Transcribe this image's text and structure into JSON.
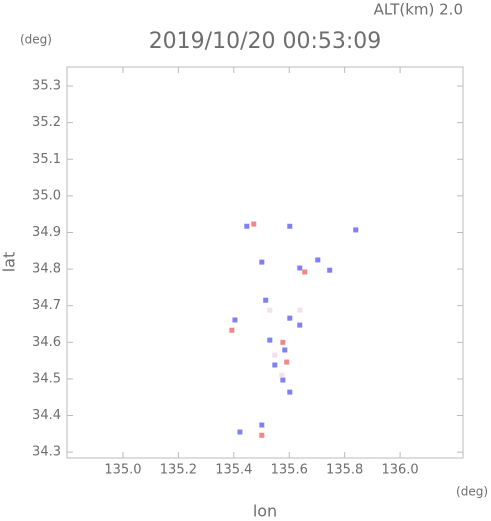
{
  "chart_data": {
    "type": "scatter",
    "title": "2019/10/20 00:53:09",
    "subtitle": "ALT(km) 2.0",
    "x_label": "lon",
    "y_label": "lat",
    "x_unit": "(deg)",
    "y_unit": "(deg)",
    "xlim": [
      134.798,
      136.227
    ],
    "ylim": [
      34.284,
      35.352
    ],
    "xticks": [
      {
        "value": 135.0,
        "label": "135.0"
      },
      135.2,
      135.4,
      135.6,
      135.8,
      {
        "value": 136.0,
        "label": "136.0"
      }
    ],
    "yticks": [
      34.3,
      34.4,
      34.5,
      34.6,
      34.7,
      34.8,
      34.9,
      {
        "value": 35.0,
        "label": "35.0"
      },
      35.1,
      35.2,
      35.3
    ],
    "series": [
      {
        "name": "blue",
        "color": "#6a6af0",
        "x": [
          135.447,
          135.602,
          135.84,
          135.501,
          135.638,
          135.703,
          135.746,
          135.515,
          135.602,
          135.638,
          135.404,
          135.53,
          135.584,
          135.548,
          135.577,
          135.602,
          135.422,
          135.501
        ],
        "values": [
          34.917,
          34.917,
          34.907,
          34.819,
          34.803,
          34.825,
          34.797,
          34.715,
          34.666,
          34.647,
          34.661,
          34.606,
          34.579,
          34.538,
          34.497,
          34.464,
          34.355,
          34.374
        ]
      },
      {
        "name": "red",
        "color": "#f07070",
        "x": [
          135.472,
          135.393,
          135.577,
          135.591,
          135.501,
          135.656
        ],
        "values": [
          34.923,
          34.633,
          34.6,
          34.546,
          34.346,
          34.792
        ]
      },
      {
        "name": "pink",
        "color": "#f2d8ec",
        "x": [
          135.53,
          135.548,
          135.573,
          135.638
        ],
        "values": [
          34.688,
          34.565,
          34.51,
          34.688
        ]
      }
    ]
  }
}
